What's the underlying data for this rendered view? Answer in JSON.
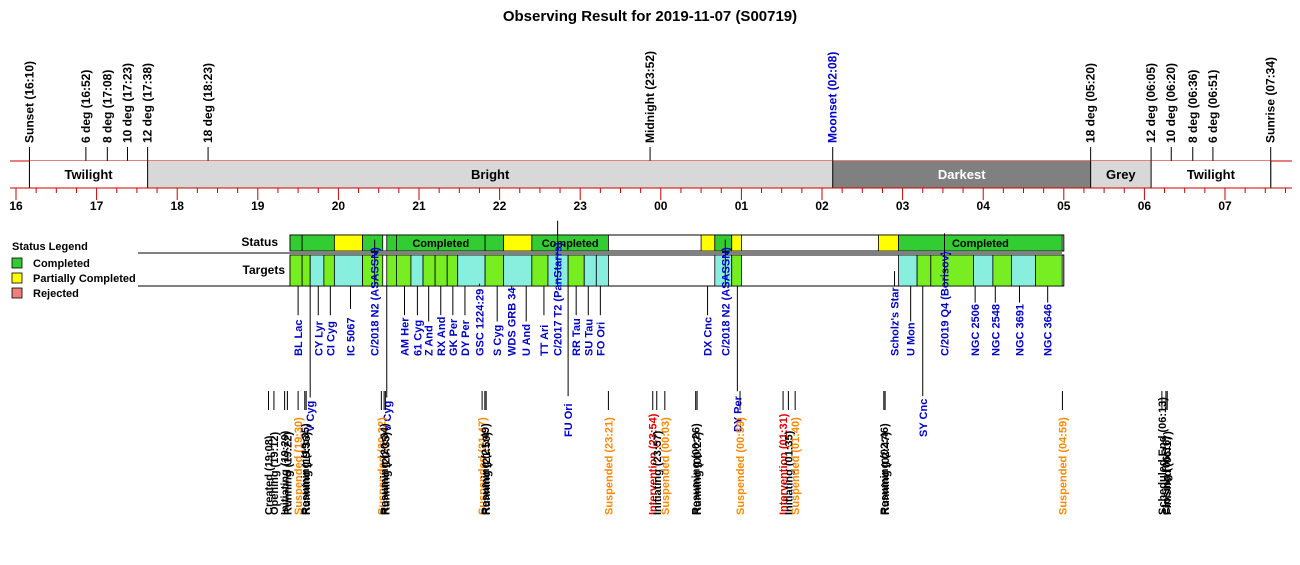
{
  "title": "Observing Result for 2019-11-07 (S00719)",
  "colors": {
    "redline": "#cc0000",
    "twilight": "#ffffff",
    "bright": "#d8d8d8",
    "darkest": "#808080",
    "grey": "#d8d8d8",
    "completed": "#33cc33",
    "partial": "#ffff00",
    "rejected": "#f08080",
    "target_green": "#77ee22",
    "target_cyan": "#88eedd",
    "blue_text": "#0000cc",
    "orange_text": "#ff8800",
    "red_text": "#dd0000"
  },
  "time_axis": {
    "hour_labels": [
      "16",
      "17",
      "18",
      "19",
      "20",
      "21",
      "22",
      "23",
      "00",
      "01",
      "02",
      "03",
      "04",
      "05",
      "06",
      "07"
    ]
  },
  "events": [
    {
      "label": "Sunset (16:10)",
      "t": 16.167,
      "color": "black"
    },
    {
      "label": "6 deg (16:52)",
      "t": 16.867,
      "color": "black"
    },
    {
      "label": "8 deg (17:08)",
      "t": 17.133,
      "color": "black"
    },
    {
      "label": "10 deg (17:23)",
      "t": 17.383,
      "color": "black"
    },
    {
      "label": "12 deg (17:38)",
      "t": 17.633,
      "color": "black"
    },
    {
      "label": "18 deg (18:23)",
      "t": 18.383,
      "color": "black"
    },
    {
      "label": "Midnight (23:52)",
      "t": 23.867,
      "color": "black"
    },
    {
      "label": "Moonset (02:08)",
      "t": 26.133,
      "color": "blue"
    },
    {
      "label": "18 deg (05:20)",
      "t": 29.333,
      "color": "black"
    },
    {
      "label": "12 deg (06:05)",
      "t": 30.083,
      "color": "black"
    },
    {
      "label": "10 deg (06:20)",
      "t": 30.333,
      "color": "black"
    },
    {
      "label": "8 deg (06:36)",
      "t": 30.6,
      "color": "black"
    },
    {
      "label": "6 deg (06:51)",
      "t": 30.85,
      "color": "black"
    },
    {
      "label": "Sunrise (07:34)",
      "t": 31.567,
      "color": "black"
    }
  ],
  "sky_bands": [
    {
      "label": "Twilight",
      "start": 16.167,
      "end": 17.633,
      "fill": "twilight"
    },
    {
      "label": "Bright",
      "start": 17.633,
      "end": 26.133,
      "fill": "bright"
    },
    {
      "label": "Darkest",
      "start": 26.133,
      "end": 29.333,
      "fill": "darkest"
    },
    {
      "label": "Grey",
      "start": 29.333,
      "end": 30.083,
      "fill": "grey"
    },
    {
      "label": "Twilight",
      "start": 30.083,
      "end": 31.567,
      "fill": "twilight"
    }
  ],
  "legend": {
    "title": "Status Legend",
    "items": [
      {
        "label": "Completed",
        "color": "completed"
      },
      {
        "label": "Partially Completed",
        "color": "partial"
      },
      {
        "label": "Rejected",
        "color": "rejected"
      }
    ]
  },
  "status_row": {
    "label": "Status",
    "segments": [
      {
        "start": 19.4,
        "end": 19.55,
        "status": "completed",
        "label": ""
      },
      {
        "start": 19.55,
        "end": 19.95,
        "status": "completed",
        "label": ""
      },
      {
        "start": 19.95,
        "end": 20.3,
        "status": "partial",
        "label": ""
      },
      {
        "start": 20.3,
        "end": 20.55,
        "status": "completed",
        "label": ""
      },
      {
        "start": 20.6,
        "end": 20.72,
        "status": "completed",
        "label": ""
      },
      {
        "start": 20.72,
        "end": 21.82,
        "status": "completed",
        "label": "Completed"
      },
      {
        "start": 21.82,
        "end": 22.05,
        "status": "completed",
        "label": ""
      },
      {
        "start": 22.05,
        "end": 22.4,
        "status": "partial",
        "label": ""
      },
      {
        "start": 22.4,
        "end": 23.35,
        "status": "completed",
        "label": "Completed"
      },
      {
        "start": 24.5,
        "end": 24.67,
        "status": "partial",
        "label": ""
      },
      {
        "start": 24.67,
        "end": 24.88,
        "status": "completed",
        "label": ""
      },
      {
        "start": 24.88,
        "end": 25.0,
        "status": "partial",
        "label": ""
      },
      {
        "start": 26.7,
        "end": 26.95,
        "status": "partial",
        "label": ""
      },
      {
        "start": 26.95,
        "end": 28.98,
        "status": "completed",
        "label": "Completed"
      }
    ]
  },
  "targets_row": {
    "label": "Targets",
    "blocks": [
      {
        "start": 19.4,
        "end": 19.55,
        "color": "target_green"
      },
      {
        "start": 19.55,
        "end": 19.65,
        "color": "target_green"
      },
      {
        "start": 19.65,
        "end": 19.82,
        "color": "target_cyan"
      },
      {
        "start": 19.82,
        "end": 19.95,
        "color": "target_green"
      },
      {
        "start": 19.95,
        "end": 20.3,
        "color": "target_cyan"
      },
      {
        "start": 20.3,
        "end": 20.55,
        "color": "target_green"
      },
      {
        "start": 20.6,
        "end": 20.72,
        "color": "target_green"
      },
      {
        "start": 20.72,
        "end": 20.9,
        "color": "target_green"
      },
      {
        "start": 20.9,
        "end": 21.05,
        "color": "target_cyan"
      },
      {
        "start": 21.05,
        "end": 21.2,
        "color": "target_green"
      },
      {
        "start": 21.2,
        "end": 21.35,
        "color": "target_green"
      },
      {
        "start": 21.35,
        "end": 21.48,
        "color": "target_green"
      },
      {
        "start": 21.48,
        "end": 21.82,
        "color": "target_cyan"
      },
      {
        "start": 21.82,
        "end": 22.05,
        "color": "target_green"
      },
      {
        "start": 22.05,
        "end": 22.4,
        "color": "target_cyan"
      },
      {
        "start": 22.4,
        "end": 22.6,
        "color": "target_green"
      },
      {
        "start": 22.6,
        "end": 22.85,
        "color": "target_cyan"
      },
      {
        "start": 22.85,
        "end": 23.05,
        "color": "target_green"
      },
      {
        "start": 23.05,
        "end": 23.2,
        "color": "target_cyan"
      },
      {
        "start": 23.2,
        "end": 23.35,
        "color": "target_cyan"
      },
      {
        "start": 24.67,
        "end": 24.88,
        "color": "target_cyan"
      },
      {
        "start": 24.88,
        "end": 25.0,
        "color": "target_green"
      },
      {
        "start": 26.95,
        "end": 27.18,
        "color": "target_cyan"
      },
      {
        "start": 27.18,
        "end": 27.35,
        "color": "target_green"
      },
      {
        "start": 27.35,
        "end": 27.88,
        "color": "target_green"
      },
      {
        "start": 27.88,
        "end": 28.12,
        "color": "target_cyan"
      },
      {
        "start": 28.12,
        "end": 28.35,
        "color": "target_green"
      },
      {
        "start": 28.35,
        "end": 28.65,
        "color": "target_cyan"
      },
      {
        "start": 28.65,
        "end": 28.98,
        "color": "target_green"
      }
    ]
  },
  "target_labels": [
    {
      "label": "BL Lac",
      "t": 19.5,
      "tier": "upper"
    },
    {
      "label": "CY Lyr",
      "t": 19.75,
      "tier": "upper"
    },
    {
      "label": "CI Cyg",
      "t": 19.9,
      "tier": "upper"
    },
    {
      "label": "IC 5067",
      "t": 20.15,
      "tier": "upper"
    },
    {
      "label": "C/2018 N2 (ASASSN)",
      "t": 20.45,
      "tier": "upper"
    },
    {
      "label": "AM Her",
      "t": 20.82,
      "tier": "upper"
    },
    {
      "label": "61 Cyg",
      "t": 20.98,
      "tier": "upper"
    },
    {
      "label": "Z And",
      "t": 21.12,
      "tier": "upper"
    },
    {
      "label": "RX And",
      "t": 21.27,
      "tier": "upper"
    },
    {
      "label": "GK Per",
      "t": 21.42,
      "tier": "upper"
    },
    {
      "label": "DY Per",
      "t": 21.57,
      "tier": "upper"
    },
    {
      "label": "GSC 1224:29",
      "t": 21.75,
      "tier": "upper"
    },
    {
      "label": "S Cyg",
      "t": 21.97,
      "tier": "upper"
    },
    {
      "label": "WDS GRB 34",
      "t": 22.15,
      "tier": "upper"
    },
    {
      "label": "U And",
      "t": 22.33,
      "tier": "upper"
    },
    {
      "label": "TT Ari",
      "t": 22.55,
      "tier": "upper"
    },
    {
      "label": "C/2017 T2 (PanStarrs)",
      "t": 22.72,
      "tier": "upper"
    },
    {
      "label": "RR Tau",
      "t": 22.95,
      "tier": "upper"
    },
    {
      "label": "SU Tau",
      "t": 23.1,
      "tier": "upper"
    },
    {
      "label": "FO Ori",
      "t": 23.25,
      "tier": "upper"
    },
    {
      "label": "DX Cnc",
      "t": 24.58,
      "tier": "upper"
    },
    {
      "label": "C/2018 N2 (ASASSN)",
      "t": 24.8,
      "tier": "upper"
    },
    {
      "label": "Scholz's Star",
      "t": 26.9,
      "tier": "upper"
    },
    {
      "label": "U Mon",
      "t": 27.1,
      "tier": "upper"
    },
    {
      "label": "C/2019 Q4 (Borisov)",
      "t": 27.52,
      "tier": "upper"
    },
    {
      "label": "NGC 2506",
      "t": 27.9,
      "tier": "upper"
    },
    {
      "label": "NGC 2548",
      "t": 28.15,
      "tier": "upper"
    },
    {
      "label": "NGC 3691",
      "t": 28.45,
      "tier": "upper"
    },
    {
      "label": "NGC 3646",
      "t": 28.8,
      "tier": "upper"
    },
    {
      "label": "V Cyg",
      "t": 19.65,
      "tier": "mid"
    },
    {
      "label": "V Cyg",
      "t": 20.6,
      "tier": "mid"
    },
    {
      "label": "FU Ori",
      "t": 22.85,
      "tier": "lower"
    },
    {
      "label": "DY Per",
      "t": 24.95,
      "tier": "mid"
    },
    {
      "label": "SY Cnc",
      "t": 27.25,
      "tier": "lower"
    }
  ],
  "log_events": [
    {
      "label": "Created (19:08)",
      "t": 19.133,
      "color": "black"
    },
    {
      "label": "Opening (19:12)",
      "t": 19.2,
      "color": "black"
    },
    {
      "label": "Initiating (19:20)",
      "t": 19.333,
      "color": "black"
    },
    {
      "label": "Running (19:22)",
      "t": 19.367,
      "color": "black"
    },
    {
      "label": "Suspended (19:30)",
      "t": 19.5,
      "color": "orange"
    },
    {
      "label": "Resuming (19:35)",
      "t": 19.583,
      "color": "black"
    },
    {
      "label": "Running (19:36)",
      "t": 19.6,
      "color": "black"
    },
    {
      "label": "Suspended (20:32)",
      "t": 20.533,
      "color": "orange"
    },
    {
      "label": "Resuming (20:34)",
      "t": 20.567,
      "color": "black"
    },
    {
      "label": "Running (20:35)",
      "t": 20.583,
      "color": "black"
    },
    {
      "label": "Suspended (21:47)",
      "t": 21.783,
      "color": "orange"
    },
    {
      "label": "Resuming (21:49)",
      "t": 21.817,
      "color": "black"
    },
    {
      "label": "Running (21:50)",
      "t": 21.833,
      "color": "black"
    },
    {
      "label": "Suspended (23:21)",
      "t": 23.35,
      "color": "orange"
    },
    {
      "label": "Intervention (23:54)",
      "t": 23.9,
      "color": "red"
    },
    {
      "label": "Initiating (23:57)",
      "t": 23.95,
      "color": "black"
    },
    {
      "label": "Suspended (00:03)",
      "t": 24.05,
      "color": "orange"
    },
    {
      "label": "Resuming (00:26)",
      "t": 24.433,
      "color": "black"
    },
    {
      "label": "Running (00:27)",
      "t": 24.45,
      "color": "black"
    },
    {
      "label": "Suspended (00:59)",
      "t": 24.983,
      "color": "orange"
    },
    {
      "label": "Intervention (01:31)",
      "t": 25.517,
      "color": "red"
    },
    {
      "label": "Initiating (01:35)",
      "t": 25.583,
      "color": "black"
    },
    {
      "label": "Suspended (01:40)",
      "t": 25.667,
      "color": "orange"
    },
    {
      "label": "Resuming (02:46)",
      "t": 26.767,
      "color": "black"
    },
    {
      "label": "Running (02:47)",
      "t": 26.783,
      "color": "black"
    },
    {
      "label": "Suspended (04:59)",
      "t": 28.983,
      "color": "orange"
    },
    {
      "label": "Scheduled End (06:13)",
      "t": 30.217,
      "color": "black"
    },
    {
      "label": "Closing (06:16)",
      "t": 30.267,
      "color": "black"
    },
    {
      "label": "Finished (06:17)",
      "t": 30.283,
      "color": "black"
    }
  ]
}
